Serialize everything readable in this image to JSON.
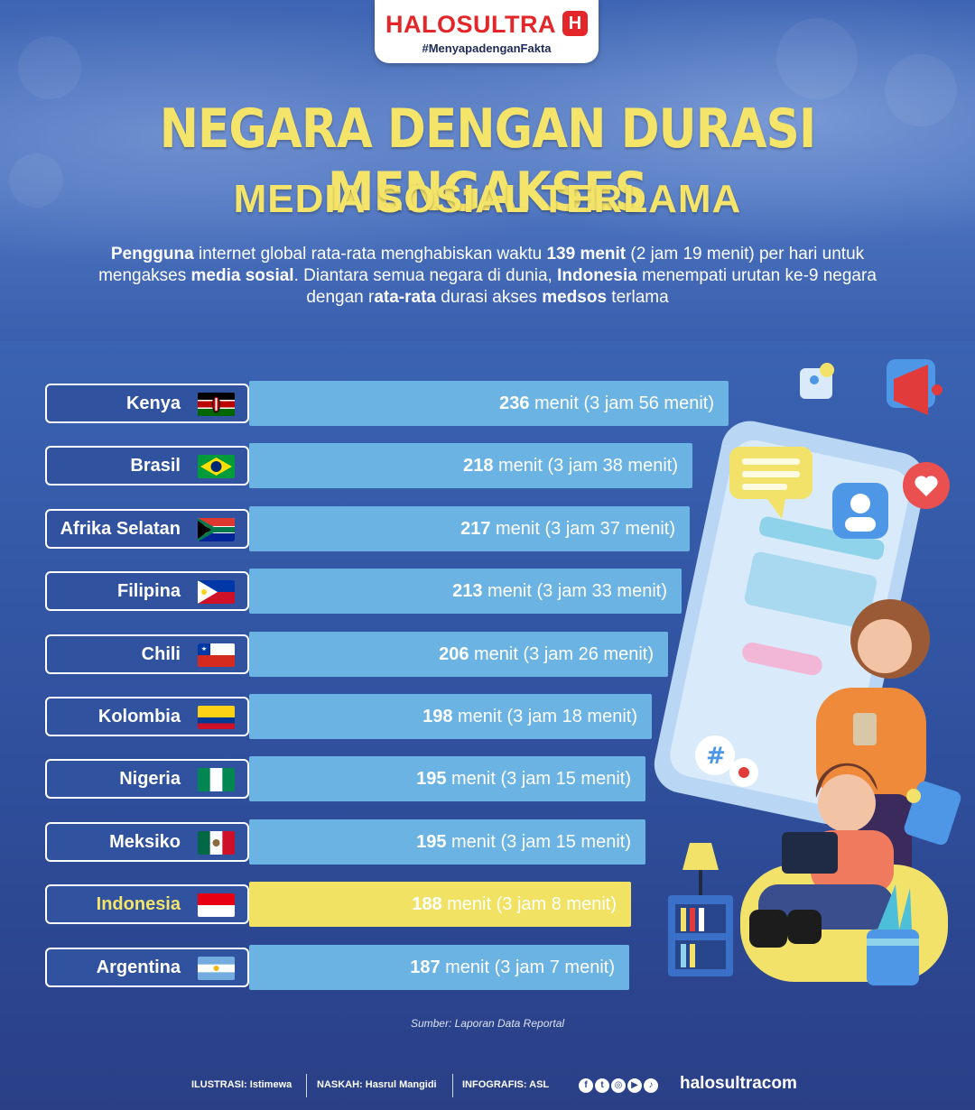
{
  "brand": {
    "name": "HALOSULTRA",
    "mark": "H",
    "tagline": "#MenyapadenganFakta"
  },
  "title_line1": "NEGARA DENGAN DURASI MENGAKSES",
  "title_line2": "MEDIA SOSIAL TERLAMA",
  "intro": [
    {
      "t": "Pengguna",
      "b": true
    },
    {
      "t": " internet global rata-rata menghabiskan waktu ",
      "b": false
    },
    {
      "t": "139 menit",
      "b": true
    },
    {
      "t": " (2 jam 19 menit) per hari untuk mengakses ",
      "b": false
    },
    {
      "t": "media sosial",
      "b": true
    },
    {
      "t": ". Diantara semua negara di dunia, ",
      "b": false
    },
    {
      "t": "Indonesia",
      "b": true
    },
    {
      "t": " menempati urutan ke-9 negara dengan r",
      "b": false
    },
    {
      "t": "ata-rata",
      "b": true
    },
    {
      "t": " durasi akses ",
      "b": false
    },
    {
      "t": "medsos",
      "b": true
    },
    {
      "t": " terlama",
      "b": false
    }
  ],
  "chart_data": {
    "type": "bar",
    "orientation": "horizontal",
    "unit": "menit",
    "categories": [
      "Kenya",
      "Brasil",
      "Afrika Selatan",
      "Filipina",
      "Chili",
      "Kolombia",
      "Nigeria",
      "Meksiko",
      "Indonesia",
      "Argentina"
    ],
    "values": [
      236,
      218,
      217,
      213,
      206,
      198,
      195,
      195,
      188,
      187
    ],
    "value_labels": [
      "(3 jam 56 menit)",
      "(3 jam 38 menit)",
      "(3 jam 37 menit)",
      "(3 jam 33 menit)",
      "(3 jam 26 menit)",
      "(3 jam 18 menit)",
      "(3 jam 15 menit)",
      "(3 jam 15 menit)",
      "(3 jam 8 menit)",
      "(3 jam 7 menit)"
    ],
    "flags": [
      "kenya-flag",
      "brazil-flag",
      "south-africa-flag",
      "philippines-flag",
      "chile-flag",
      "colombia-flag",
      "nigeria-flag",
      "mexico-flag",
      "indonesia-flag",
      "argentina-flag"
    ],
    "highlight": "Indonesia",
    "colors": {
      "bar": "#6bb3e3",
      "highlight": "#f1e264"
    }
  },
  "source": "Sumber: Laporan Data Reportal",
  "footer": {
    "ilustrasi": "ILUSTRASI: Istimewa",
    "naskah": "NASKAH: Hasrul Mangidi",
    "infografis": "INFOGRAFIS: ASL",
    "social_icons": [
      "facebook-icon",
      "twitter-icon",
      "instagram-icon",
      "youtube-icon",
      "tiktok-icon"
    ],
    "website": "halosultracom"
  }
}
